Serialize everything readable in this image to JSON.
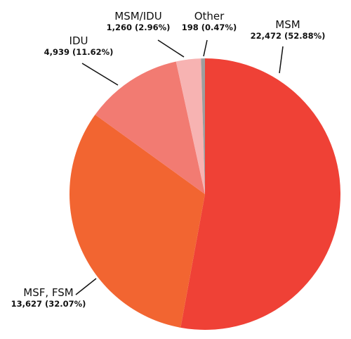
{
  "chart_data": {
    "type": "pie",
    "slices": [
      {
        "name": "MSM",
        "count": 22472,
        "count_label": "22,472",
        "percent": 52.88,
        "percent_label": "(52.88%)",
        "color": "#ef4136"
      },
      {
        "name": "MSF, FSM",
        "count": 13627,
        "count_label": "13,627",
        "percent": 32.07,
        "percent_label": "(32.07%)",
        "color": "#f26531"
      },
      {
        "name": "IDU",
        "count": 4939,
        "count_label": "4,939",
        "percent": 11.62,
        "percent_label": "(11.62%)",
        "color": "#f27b72"
      },
      {
        "name": "MSM/IDU",
        "count": 1260,
        "count_label": "1,260",
        "percent": 2.96,
        "percent_label": "(2.96%)",
        "color": "#f7b3b2"
      },
      {
        "name": "Other",
        "count": 198,
        "count_label": "198",
        "percent": 0.47,
        "percent_label": "(0.47%)",
        "color": "#9e9e9e"
      }
    ],
    "direction": "clockwise",
    "start": "12 o'clock"
  }
}
